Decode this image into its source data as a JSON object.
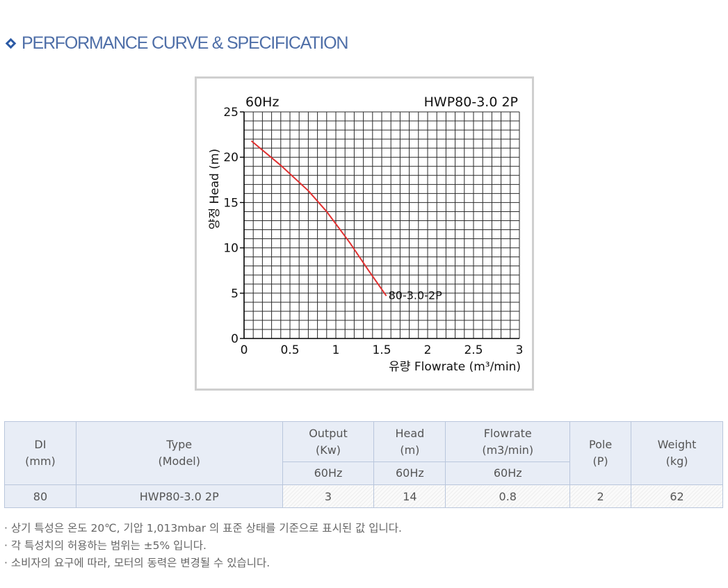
{
  "header": {
    "title": "PERFORMANCE CURVE & SPECIFICATION"
  },
  "chart_data": {
    "type": "line",
    "frequency_label": "60Hz",
    "model_label": "HWP80-3.0 2P",
    "ylabel": "양정 Head (m)",
    "xlabel": "유량 Flowrate (m³/min)",
    "xlim": [
      0,
      3
    ],
    "ylim": [
      0,
      25
    ],
    "x_ticks": [
      "0",
      "0.5",
      "1",
      "1.5",
      "2",
      "2.5",
      "3"
    ],
    "y_ticks": [
      "0",
      "5",
      "10",
      "15",
      "20",
      "25"
    ],
    "grid": true,
    "color": "#e03030",
    "series": [
      {
        "name": "80-3.0-2P",
        "x": [
          0.08,
          0.4,
          0.7,
          0.9,
          1.15,
          1.35,
          1.55
        ],
        "y": [
          21.8,
          19.1,
          16.3,
          14.0,
          10.6,
          7.6,
          4.7
        ]
      }
    ]
  },
  "table": {
    "headers": {
      "di": "DI\n(mm)",
      "type": "Type\n(Model)",
      "output": "Output\n(Kw)",
      "head": "Head\n(m)",
      "flowrate": "Flowrate\n(m3/min)",
      "pole": "Pole\n(P)",
      "weight": "Weight\n(kg)"
    },
    "sub_headers": {
      "output": "60Hz",
      "head": "60Hz",
      "flowrate": "60Hz"
    },
    "row": {
      "di": "80",
      "type": "HWP80-3.0 2P",
      "output": "3",
      "head": "14",
      "flowrate": "0.8",
      "pole": "2",
      "weight": "62"
    }
  },
  "notes": [
    "· 상기 특성은 온도 20℃, 기압 1,013mbar 의 표준 상태를 기준으로 표시된 값 입니다.",
    "· 각 특성치의 허용하는 범위는 ±5% 입니다.",
    "· 소비자의 요구에 따라, 모터의 동력은 변경될 수 있습니다."
  ]
}
